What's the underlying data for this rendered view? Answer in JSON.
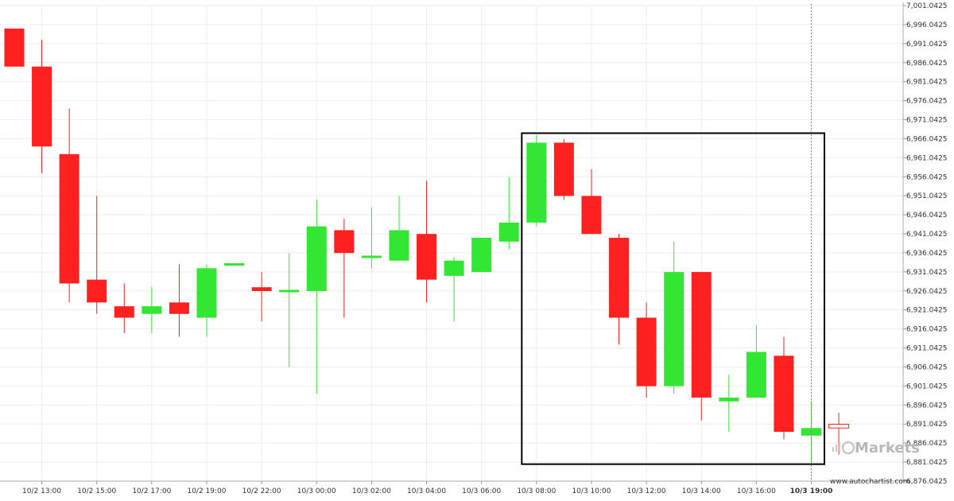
{
  "chart_data": {
    "type": "candlestick",
    "title": "",
    "xlabel": "",
    "ylabel": "",
    "ylim": [
      6876.0425,
      7001.0425
    ],
    "y_ticks": [
      "7,001.0425",
      "6,996.0425",
      "6,991.0425",
      "6,986.0425",
      "6,981.0425",
      "6,976.0425",
      "6,971.0425",
      "6,966.0425",
      "6,961.0425",
      "6,956.0425",
      "6,951.0425",
      "6,946.0425",
      "6,941.0425",
      "6,936.0425",
      "6,931.0425",
      "6,926.0425",
      "6,921.0425",
      "6,916.0425",
      "6,911.0425",
      "6,906.0425",
      "6,901.0425",
      "6,896.0425",
      "6,891.0425",
      "6,886.0425",
      "6,881.0425",
      "6,876.0425"
    ],
    "x_ticks": [
      {
        "label": "10/2 13:00",
        "index": 1
      },
      {
        "label": "10/2 15:00",
        "index": 3
      },
      {
        "label": "10/2 17:00",
        "index": 5
      },
      {
        "label": "10/2 19:00",
        "index": 7
      },
      {
        "label": "10/2 22:00",
        "index": 9
      },
      {
        "label": "10/3 00:00",
        "index": 11
      },
      {
        "label": "10/3 02:00",
        "index": 13
      },
      {
        "label": "10/3 04:00",
        "index": 15
      },
      {
        "label": "10/3 06:00",
        "index": 17
      },
      {
        "label": "10/3 08:00",
        "index": 19
      },
      {
        "label": "10/3 10:00",
        "index": 21
      },
      {
        "label": "10/3 12:00",
        "index": 23
      },
      {
        "label": "10/3 14:00",
        "index": 25
      },
      {
        "label": "10/3 16:00",
        "index": 27
      },
      {
        "label": "10/3 19:00",
        "index": 29,
        "bold": true
      }
    ],
    "candles": [
      {
        "o": 6995.0,
        "h": 6995.0,
        "l": 6985.0,
        "c": 6985.0
      },
      {
        "o": 6985.0,
        "h": 6992.0,
        "l": 6957.0,
        "c": 6964.0
      },
      {
        "o": 6962.0,
        "h": 6974.0,
        "l": 6923.0,
        "c": 6928.0
      },
      {
        "o": 6929.0,
        "h": 6951.0,
        "l": 6920.0,
        "c": 6923.0
      },
      {
        "o": 6922.0,
        "h": 6928.0,
        "l": 6915.0,
        "c": 6919.0
      },
      {
        "o": 6920.0,
        "h": 6927.0,
        "l": 6915.0,
        "c": 6922.0
      },
      {
        "o": 6923.0,
        "h": 6933.0,
        "l": 6914.0,
        "c": 6920.0
      },
      {
        "o": 6919.0,
        "h": 6933.0,
        "l": 6914.0,
        "c": 6932.0
      },
      {
        "o": 6933.0,
        "h": 6933.0,
        "l": 6933.0,
        "c": 6933.0
      },
      {
        "o": 6927.0,
        "h": 6931.0,
        "l": 6918.0,
        "c": 6926.0
      },
      {
        "o": 6926.0,
        "h": 6936.0,
        "l": 6906.0,
        "c": 6926.0
      },
      {
        "o": 6926.0,
        "h": 6950.0,
        "l": 6899.0,
        "c": 6943.0
      },
      {
        "o": 6942.0,
        "h": 6945.0,
        "l": 6919.0,
        "c": 6936.0
      },
      {
        "o": 6935.0,
        "h": 6948.0,
        "l": 6932.0,
        "c": 6935.0
      },
      {
        "o": 6934.0,
        "h": 6951.0,
        "l": 6934.0,
        "c": 6942.0
      },
      {
        "o": 6941.0,
        "h": 6955.0,
        "l": 6923.0,
        "c": 6929.0
      },
      {
        "o": 6930.0,
        "h": 6935.0,
        "l": 6918.0,
        "c": 6934.0
      },
      {
        "o": 6931.0,
        "h": 6940.0,
        "l": 6931.0,
        "c": 6940.0
      },
      {
        "o": 6939.0,
        "h": 6956.0,
        "l": 6937.0,
        "c": 6944.0
      },
      {
        "o": 6944.0,
        "h": 6967.0,
        "l": 6943.0,
        "c": 6965.0
      },
      {
        "o": 6965.0,
        "h": 6966.0,
        "l": 6950.0,
        "c": 6951.0
      },
      {
        "o": 6951.0,
        "h": 6958.0,
        "l": 6941.0,
        "c": 6941.0
      },
      {
        "o": 6940.0,
        "h": 6941.0,
        "l": 6912.0,
        "c": 6919.0
      },
      {
        "o": 6919.0,
        "h": 6923.0,
        "l": 6898.0,
        "c": 6901.0
      },
      {
        "o": 6901.0,
        "h": 6939.0,
        "l": 6899.0,
        "c": 6931.0
      },
      {
        "o": 6931.0,
        "h": 6931.0,
        "l": 6892.0,
        "c": 6898.0
      },
      {
        "o": 6897.0,
        "h": 6904.0,
        "l": 6889.0,
        "c": 6898.0
      },
      {
        "o": 6898.0,
        "h": 6917.0,
        "l": 6898.0,
        "c": 6910.0
      },
      {
        "o": 6909.0,
        "h": 6914.0,
        "l": 6887.0,
        "c": 6889.0
      },
      {
        "o": 6888.0,
        "h": 6897.0,
        "l": 6881.0,
        "c": 6890.0
      },
      {
        "o": 6891.0,
        "h": 6894.0,
        "l": 6883.0,
        "c": 6890.0
      }
    ],
    "last_candle_hollow": true,
    "pattern_box": {
      "from_index": 19,
      "to_index": 29,
      "high": 6967.5,
      "low": 6880.5
    },
    "current_time_index": 29,
    "colors": {
      "up": "#33e633",
      "down": "#ff2020",
      "box": "#000000",
      "grid": "#eeeeee",
      "cursor": "#888888"
    },
    "grid": true
  },
  "watermark": {
    "text": "Markets"
  },
  "credit": {
    "url": "www.autochartist.com"
  }
}
